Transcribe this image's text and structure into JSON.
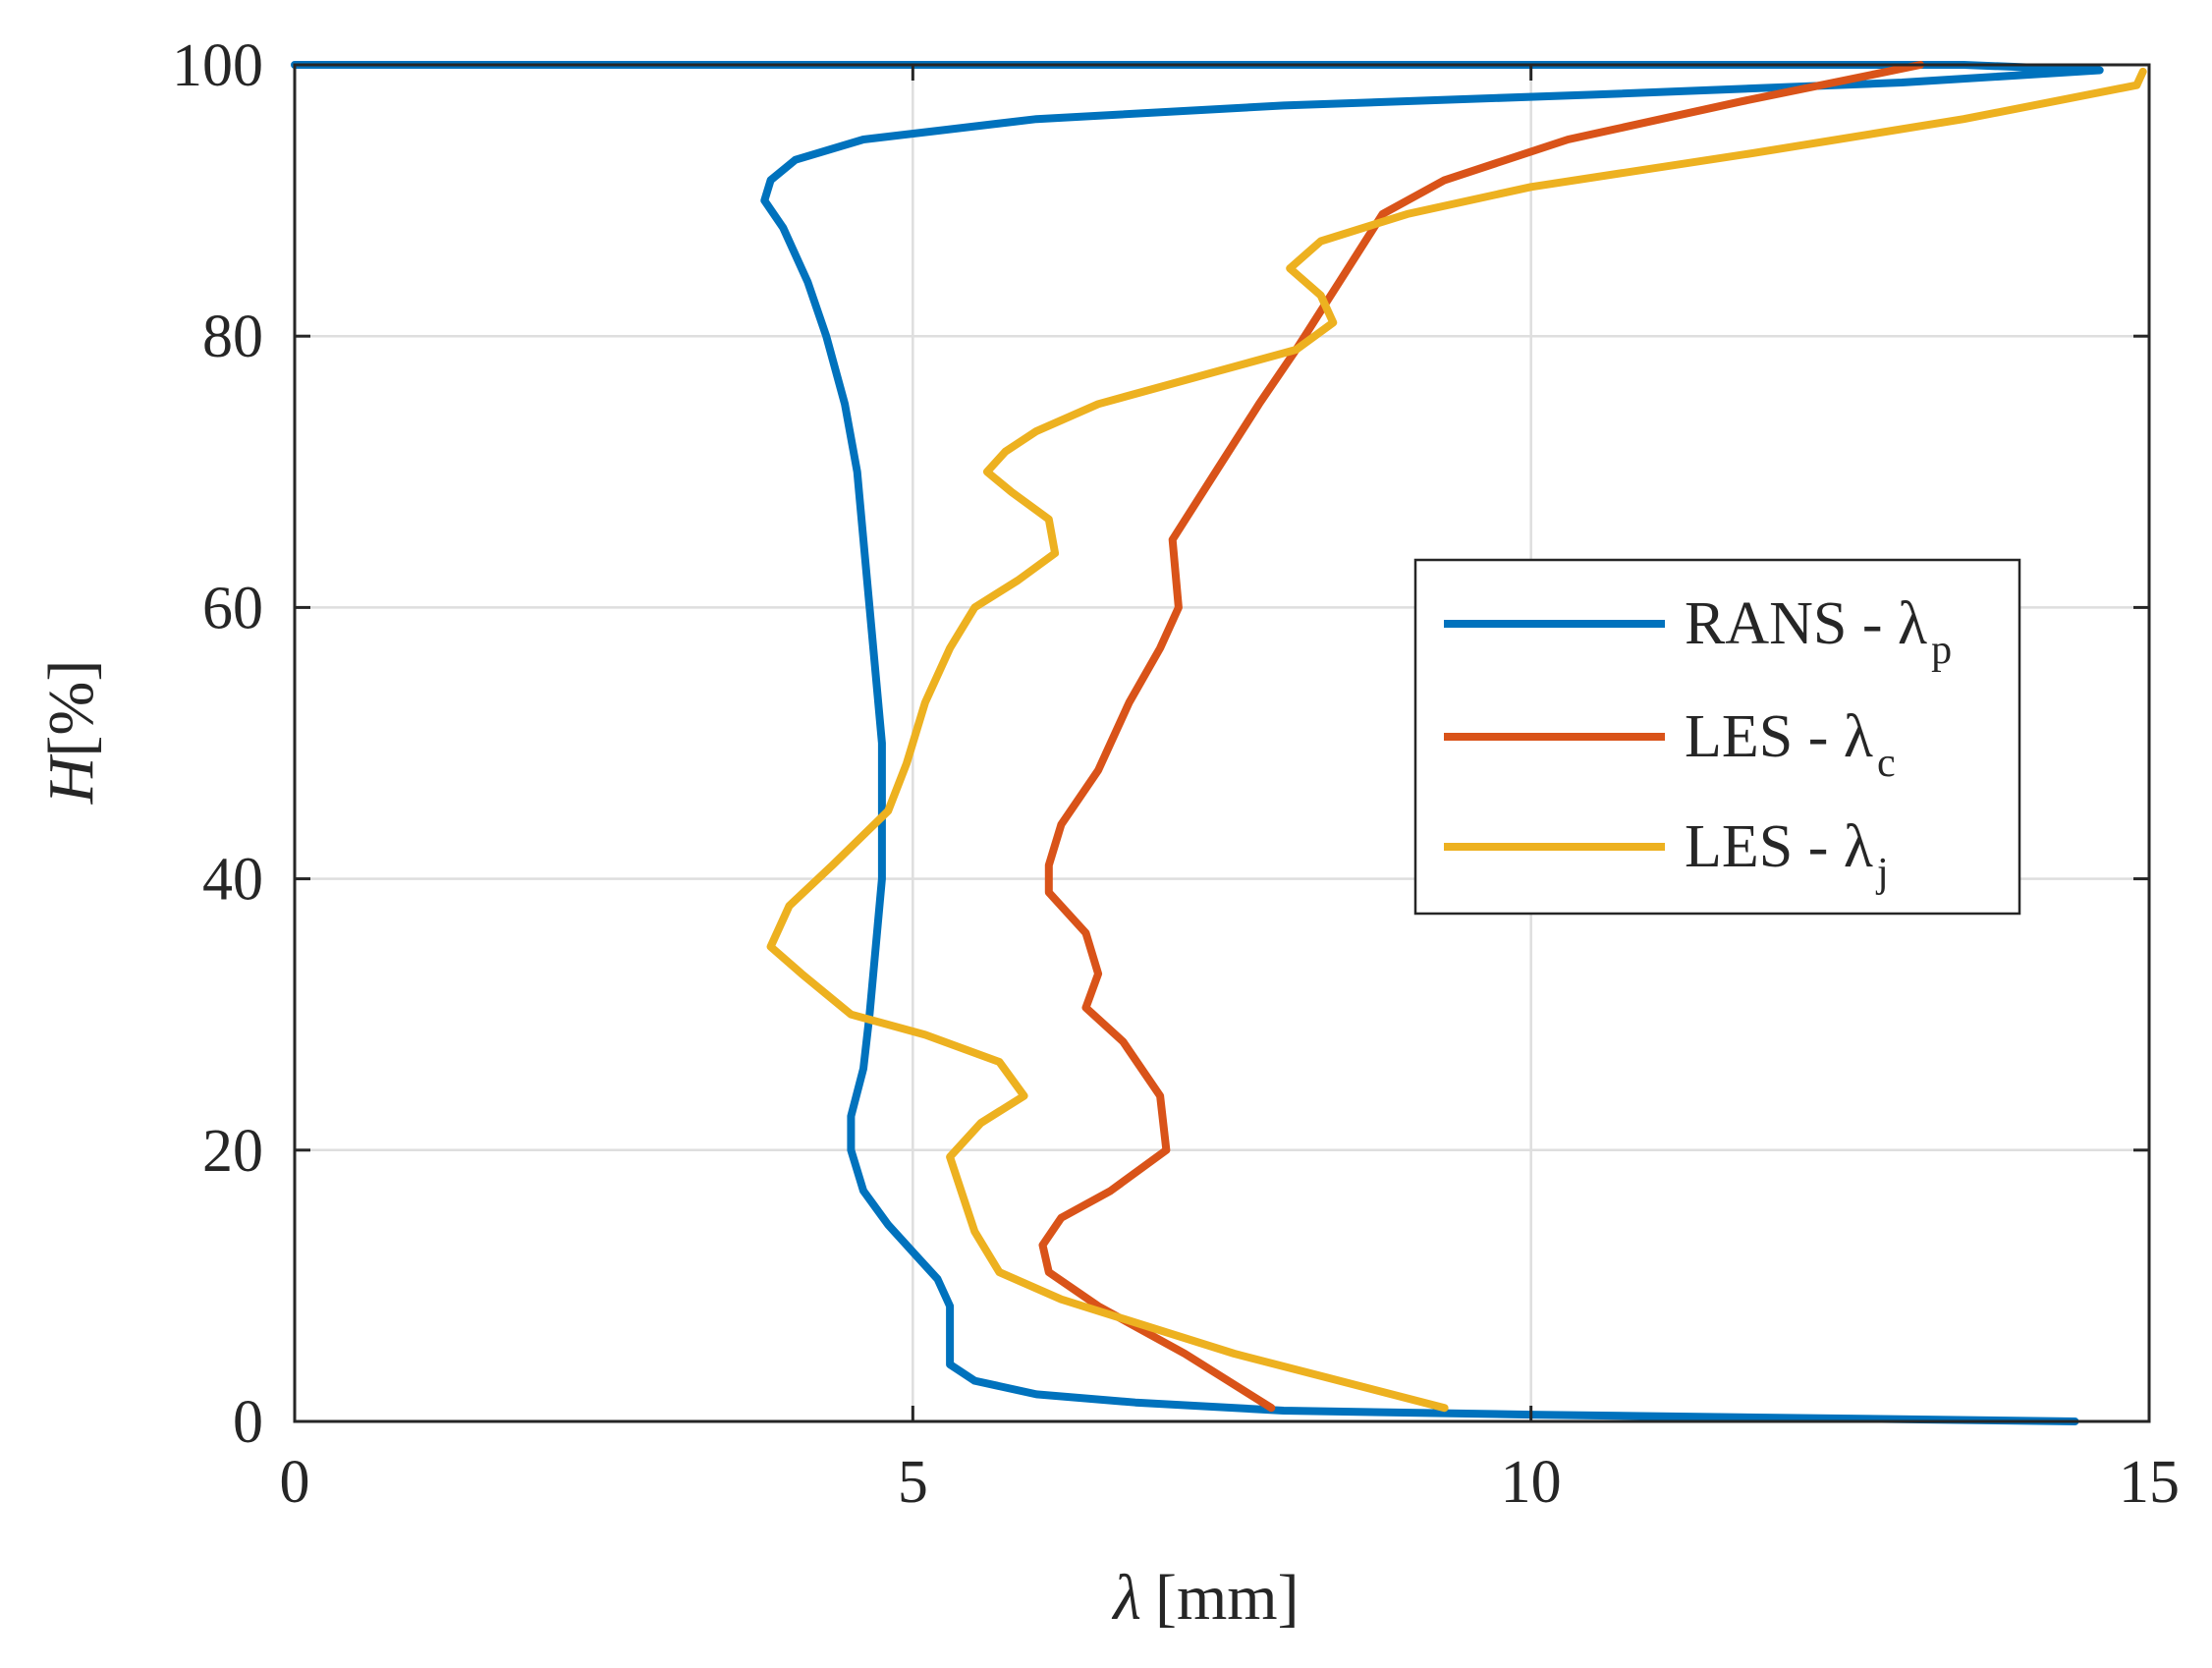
{
  "chart_data": {
    "type": "line",
    "title": "",
    "xlabel": {
      "symbol": "λ",
      "unit": "[mm]"
    },
    "ylabel": {
      "symbol": "H",
      "unit": "[%]"
    },
    "xlim": [
      0,
      15
    ],
    "ylim": [
      0,
      100
    ],
    "xticks": [
      0,
      5,
      10,
      15
    ],
    "xtick_labels": [
      "0",
      "5",
      "10",
      "15"
    ],
    "yticks": [
      0,
      20,
      40,
      60,
      80,
      100
    ],
    "ytick_labels": [
      "0",
      "20",
      "40",
      "60",
      "80",
      "100"
    ],
    "grid": true,
    "legend_position": "center-right",
    "series": [
      {
        "name": "RANS - λp",
        "legend_main": "RANS - λ",
        "legend_sub": "p",
        "color": "#0072BD",
        "points": [
          [
            14.4,
            0
          ],
          [
            10.0,
            0.5
          ],
          [
            8.0,
            0.8
          ],
          [
            6.8,
            1.4
          ],
          [
            6.0,
            2.0
          ],
          [
            5.5,
            3.0
          ],
          [
            5.3,
            4.2
          ],
          [
            5.3,
            6.0
          ],
          [
            5.3,
            8.5
          ],
          [
            5.2,
            10.5
          ],
          [
            5.0,
            12.5
          ],
          [
            4.8,
            14.5
          ],
          [
            4.6,
            17.0
          ],
          [
            4.5,
            20.0
          ],
          [
            4.5,
            22.5
          ],
          [
            4.6,
            26.0
          ],
          [
            4.65,
            30.0
          ],
          [
            4.7,
            35.0
          ],
          [
            4.75,
            40.0
          ],
          [
            4.75,
            45.0
          ],
          [
            4.75,
            50.0
          ],
          [
            4.7,
            55.0
          ],
          [
            4.65,
            60.0
          ],
          [
            4.6,
            65.0
          ],
          [
            4.55,
            70.0
          ],
          [
            4.45,
            75.0
          ],
          [
            4.3,
            80.0
          ],
          [
            4.15,
            84.0
          ],
          [
            3.95,
            88.0
          ],
          [
            3.8,
            90.0
          ],
          [
            3.85,
            91.5
          ],
          [
            4.05,
            93.0
          ],
          [
            4.6,
            94.5
          ],
          [
            6.0,
            96.0
          ],
          [
            8.0,
            97.0
          ],
          [
            10.5,
            97.8
          ],
          [
            13.0,
            98.7
          ],
          [
            14.6,
            99.6
          ],
          [
            13.5,
            100.0
          ],
          [
            5.0,
            100.0
          ],
          [
            0.0,
            100.0
          ]
        ]
      },
      {
        "name": "LES - λc",
        "legend_main": "LES - λ",
        "legend_sub": "c",
        "color": "#D95319",
        "points": [
          [
            7.9,
            1.0
          ],
          [
            7.2,
            5.0
          ],
          [
            6.5,
            8.5
          ],
          [
            6.1,
            11.0
          ],
          [
            6.05,
            13.0
          ],
          [
            6.2,
            15.0
          ],
          [
            6.6,
            17.0
          ],
          [
            7.05,
            20.0
          ],
          [
            7.0,
            24.0
          ],
          [
            6.7,
            28.0
          ],
          [
            6.4,
            30.5
          ],
          [
            6.5,
            33.0
          ],
          [
            6.4,
            36.0
          ],
          [
            6.1,
            39.0
          ],
          [
            6.1,
            41.0
          ],
          [
            6.2,
            44.0
          ],
          [
            6.5,
            48.0
          ],
          [
            6.75,
            53.0
          ],
          [
            7.0,
            57.0
          ],
          [
            7.15,
            60.0
          ],
          [
            7.1,
            65.0
          ],
          [
            7.45,
            70.0
          ],
          [
            7.8,
            75.0
          ],
          [
            8.1,
            79.0
          ],
          [
            8.45,
            84.0
          ],
          [
            8.8,
            89.0
          ],
          [
            9.3,
            91.5
          ],
          [
            10.3,
            94.5
          ],
          [
            11.7,
            97.3
          ],
          [
            13.15,
            100.0
          ]
        ]
      },
      {
        "name": "LES - λj",
        "legend_main": "LES - λ",
        "legend_sub": "j",
        "color": "#EDB120",
        "points": [
          [
            9.3,
            1.0
          ],
          [
            7.6,
            5.0
          ],
          [
            6.2,
            9.0
          ],
          [
            5.7,
            11.0
          ],
          [
            5.5,
            14.0
          ],
          [
            5.3,
            19.5
          ],
          [
            5.55,
            22.0
          ],
          [
            5.9,
            24.0
          ],
          [
            5.7,
            26.5
          ],
          [
            5.1,
            28.5
          ],
          [
            4.5,
            30.0
          ],
          [
            4.1,
            33.0
          ],
          [
            3.85,
            35.0
          ],
          [
            4.0,
            38.0
          ],
          [
            4.35,
            41.0
          ],
          [
            4.8,
            45.0
          ],
          [
            4.95,
            48.5
          ],
          [
            5.1,
            53.0
          ],
          [
            5.3,
            57.0
          ],
          [
            5.5,
            60.0
          ],
          [
            5.85,
            62.0
          ],
          [
            6.15,
            64.0
          ],
          [
            6.1,
            66.5
          ],
          [
            5.8,
            68.5
          ],
          [
            5.6,
            70.0
          ],
          [
            5.75,
            71.5
          ],
          [
            6.0,
            73.0
          ],
          [
            6.5,
            75.0
          ],
          [
            7.3,
            77.0
          ],
          [
            8.1,
            79.0
          ],
          [
            8.4,
            81.0
          ],
          [
            8.3,
            83.0
          ],
          [
            8.05,
            85.0
          ],
          [
            8.3,
            87.0
          ],
          [
            9.0,
            89.0
          ],
          [
            10.0,
            91.0
          ],
          [
            11.8,
            93.5
          ],
          [
            13.5,
            96.0
          ],
          [
            14.9,
            98.5
          ],
          [
            14.95,
            99.5
          ]
        ]
      }
    ]
  }
}
